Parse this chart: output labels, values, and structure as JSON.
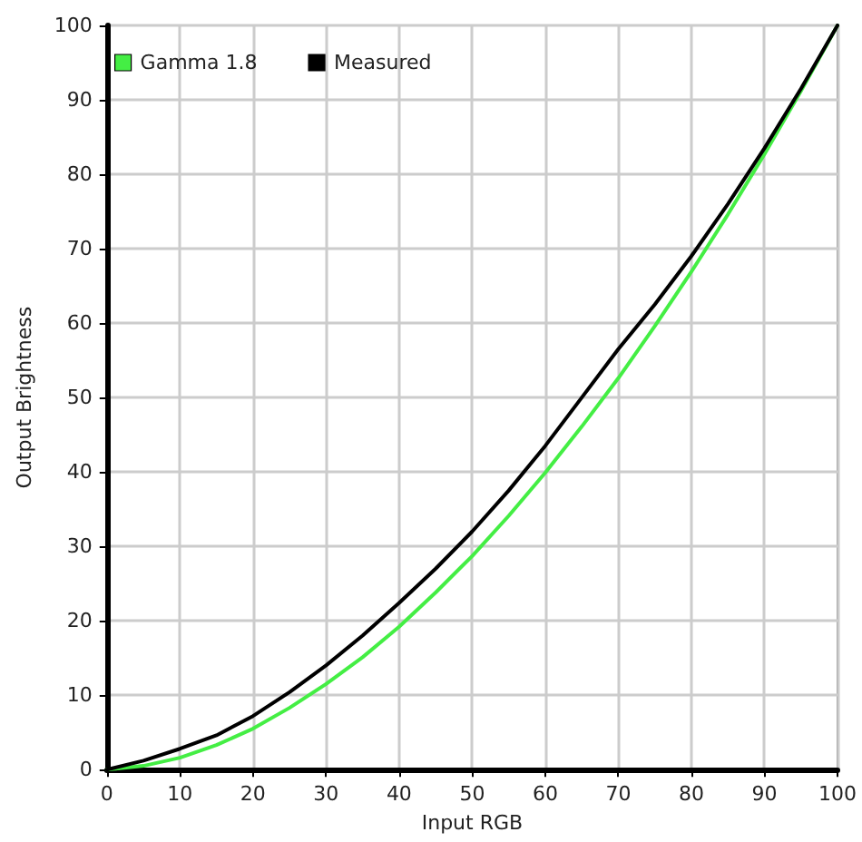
{
  "chart_data": {
    "type": "line",
    "xlabel": "Input RGB",
    "ylabel": "Output Brightness",
    "x": [
      0,
      5,
      10,
      15,
      20,
      25,
      30,
      35,
      40,
      45,
      50,
      55,
      60,
      65,
      70,
      75,
      80,
      85,
      90,
      95,
      100
    ],
    "series": [
      {
        "name": "Gamma 1.8",
        "color": "#44ee44",
        "values": [
          0,
          0.5,
          1.6,
          3.3,
          5.5,
          8.3,
          11.5,
          15.1,
          19.2,
          23.8,
          28.7,
          34.1,
          39.9,
          46.1,
          52.6,
          59.6,
          66.9,
          74.6,
          82.7,
          91.2,
          100
        ]
      },
      {
        "name": "Measured",
        "color": "#000000",
        "values": [
          0,
          1.2,
          2.8,
          4.6,
          7.2,
          10.4,
          14,
          18,
          22.4,
          27,
          32,
          37.5,
          43.5,
          50,
          56.5,
          62.5,
          69,
          76,
          83.5,
          91.5,
          100
        ]
      }
    ],
    "xlim": [
      0,
      100
    ],
    "ylim": [
      0,
      100
    ],
    "xticks": [
      0,
      10,
      20,
      30,
      40,
      50,
      60,
      70,
      80,
      90,
      100
    ],
    "yticks": [
      0,
      10,
      20,
      30,
      40,
      50,
      60,
      70,
      80,
      90,
      100
    ],
    "grid": true,
    "legend": "top left",
    "marker": "none",
    "line_style": "solid"
  }
}
